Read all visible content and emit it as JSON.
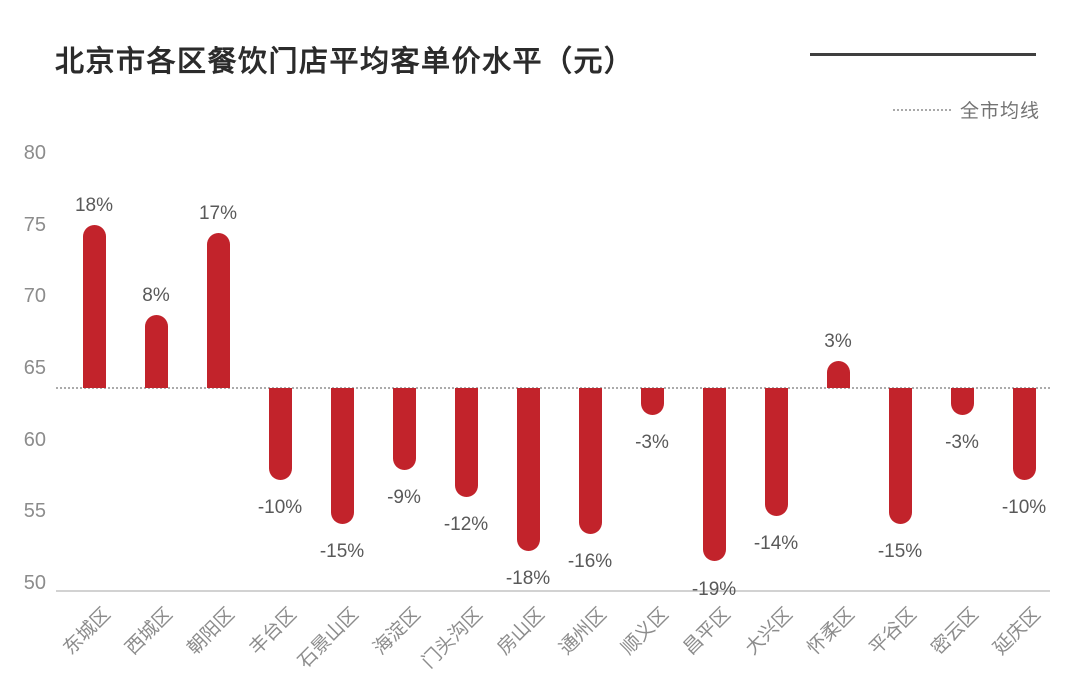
{
  "title": "北京市各区餐饮门店平均客单价水平（元）",
  "legend": {
    "average_line_label": "全市均线"
  },
  "colors": {
    "bar": "#c2232b",
    "title_text": "#2b2b2b",
    "tick_text": "#8c8c8c",
    "value_label_text": "#595959",
    "baseline_dotted": "#ababab",
    "accent_line": "#3f3f3f"
  },
  "chart_data": {
    "type": "bar",
    "title": "北京市各区餐饮门店平均客单价水平（元）",
    "unit": "元",
    "categories": [
      "东城区",
      "西城区",
      "朝阳区",
      "丰台区",
      "石景山区",
      "海淀区",
      "门头沟区",
      "房山区",
      "通州区",
      "顺义区",
      "昌平区",
      "大兴区",
      "怀柔区",
      "平谷区",
      "密云区",
      "延庆区"
    ],
    "percent_labels": [
      "18%",
      "8%",
      "17%",
      "-10%",
      "-15%",
      "-9%",
      "-12%",
      "-18%",
      "-16%",
      "-3%",
      "-19%",
      "-14%",
      "3%",
      "-15%",
      "-3%",
      "-10%"
    ],
    "percent_values": [
      18,
      8,
      17,
      -10,
      -15,
      -9,
      -12,
      -18,
      -16,
      -3,
      -19,
      -14,
      3,
      -15,
      -3,
      -10
    ],
    "values": [
      75.0,
      68.7,
      74.4,
      57.2,
      54.1,
      57.9,
      56.0,
      52.2,
      53.4,
      61.7,
      51.5,
      54.7,
      65.5,
      54.1,
      61.7,
      57.2
    ],
    "baseline_value": 63.6,
    "baseline_label": "全市均线",
    "xlabel": "",
    "ylabel": "",
    "ylim": [
      50,
      80
    ],
    "yticks": [
      80,
      75,
      70,
      65,
      60,
      55,
      50
    ],
    "grid": false,
    "legend_position": "top-right"
  }
}
